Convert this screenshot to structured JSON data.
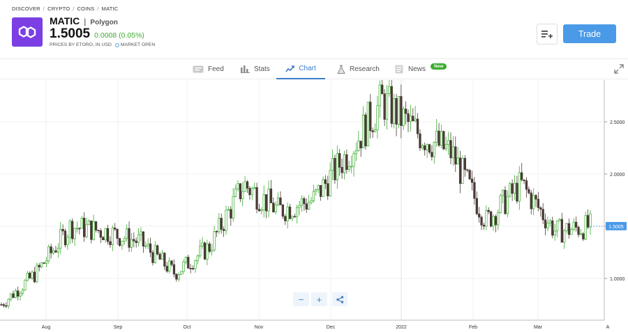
{
  "breadcrumb": [
    "DISCOVER",
    "CRYPTO",
    "COINS",
    "MATIC"
  ],
  "asset": {
    "symbol": "MATIC",
    "separator": "|",
    "name": "Polygon",
    "price": "1.5005",
    "change": "0.0008 (0.05%)",
    "price_note": "PRICES BY ETORO, IN USD",
    "market_status": "MARKET OPEN",
    "logo_color": "#7b3fe4"
  },
  "actions": {
    "trade_label": "Trade",
    "watchlist_icon": "add-to-list-icon"
  },
  "tabs": [
    {
      "label": "Feed",
      "icon": "feed-icon"
    },
    {
      "label": "Stats",
      "icon": "stats-icon"
    },
    {
      "label": "Chart",
      "icon": "chart-icon",
      "active": true
    },
    {
      "label": "Research",
      "icon": "flask-icon"
    },
    {
      "label": "News",
      "icon": "news-icon",
      "badge": "New"
    }
  ],
  "colors": {
    "up": "#3bab2f",
    "down": "#4a3a36",
    "accent": "#3a7cc9",
    "trade": "#4a9ae8"
  },
  "chart_data": {
    "type": "candlestick",
    "y_ticks": [
      "2.5000",
      "2.0000",
      "1.5000",
      "1.0000"
    ],
    "y_tick_values": [
      2.5,
      2.0,
      1.5,
      1.0
    ],
    "x_ticks": [
      "Aug",
      "Sep",
      "Oct",
      "Nov",
      "Dec",
      "2022",
      "Feb",
      "Mar",
      "A"
    ],
    "last_price_label": "1.5005",
    "last_price": 1.5005,
    "ylim": [
      0.6,
      2.9
    ],
    "grid": true,
    "monthly_path": [
      {
        "month": "Jul",
        "close": 0.75
      },
      {
        "month": "Aug",
        "close": 1.05
      },
      {
        "month": "Aug-mid",
        "close": 1.5
      },
      {
        "month": "Sep",
        "close": 1.45
      },
      {
        "month": "Sep-mid",
        "close": 1.35
      },
      {
        "month": "Oct",
        "close": 1.05
      },
      {
        "month": "Oct-mid",
        "close": 1.3
      },
      {
        "month": "Nov",
        "close": 1.9
      },
      {
        "month": "Nov-mid",
        "close": 1.65
      },
      {
        "month": "Dec",
        "close": 1.75
      },
      {
        "month": "Dec-mid",
        "close": 2.2
      },
      {
        "month": "Dec-end",
        "close": 2.7
      },
      {
        "month": "Jan",
        "close": 2.4
      },
      {
        "month": "Jan-mid",
        "close": 2.2
      },
      {
        "month": "Feb",
        "close": 1.55
      },
      {
        "month": "Feb-mid",
        "close": 1.9
      },
      {
        "month": "Mar",
        "close": 1.45
      },
      {
        "month": "Mar-end",
        "close": 1.5
      }
    ]
  },
  "controls": {
    "zoom_out": "−",
    "zoom_in": "+"
  }
}
